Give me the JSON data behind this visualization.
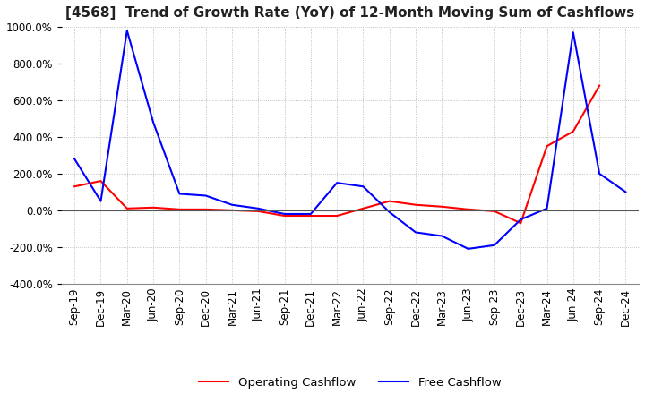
{
  "title": "[4568]  Trend of Growth Rate (YoY) of 12-Month Moving Sum of Cashflows",
  "ylim": [
    -400,
    1000
  ],
  "yticks": [
    -400,
    -200,
    0,
    200,
    400,
    600,
    800,
    1000
  ],
  "legend_labels": [
    "Operating Cashflow",
    "Free Cashflow"
  ],
  "legend_colors": [
    "red",
    "blue"
  ],
  "x_labels": [
    "Sep-19",
    "Dec-19",
    "Mar-20",
    "Jun-20",
    "Sep-20",
    "Dec-20",
    "Mar-21",
    "Jun-21",
    "Sep-21",
    "Dec-21",
    "Mar-22",
    "Jun-22",
    "Sep-22",
    "Dec-22",
    "Mar-23",
    "Jun-23",
    "Sep-23",
    "Dec-23",
    "Mar-24",
    "Jun-24",
    "Sep-24",
    "Dec-24"
  ],
  "operating_cashflow": [
    130,
    160,
    10,
    15,
    5,
    5,
    0,
    -5,
    -30,
    -30,
    -30,
    10,
    50,
    30,
    20,
    5,
    -5,
    -70,
    350,
    430,
    680,
    null
  ],
  "free_cashflow": [
    280,
    50,
    980,
    480,
    90,
    80,
    30,
    10,
    -20,
    -20,
    150,
    130,
    -10,
    -120,
    -140,
    -210,
    -190,
    -50,
    10,
    970,
    200,
    100
  ],
  "background_color": "#ffffff",
  "grid_color": "#b0b0b0",
  "grid_style": "dotted",
  "line_width": 1.5,
  "title_fontsize": 11,
  "tick_fontsize": 8.5
}
